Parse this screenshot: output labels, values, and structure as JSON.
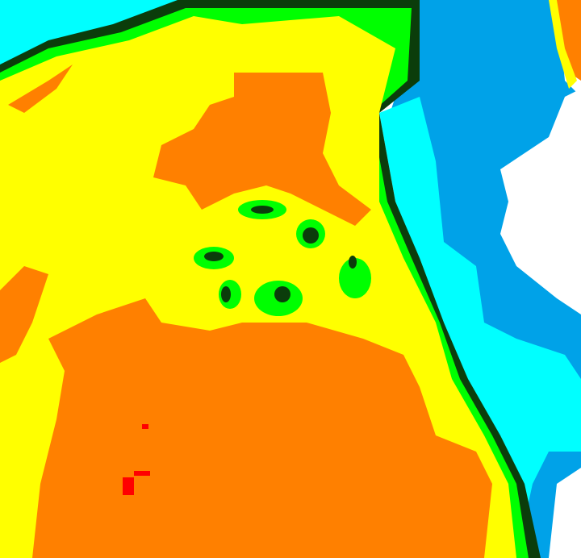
{
  "map": {
    "palette": {
      "yellow": "#ffff00",
      "orange": "#ff8000",
      "red": "#ff0000",
      "green": "#00ff00",
      "dark_green": "#0b3d0b",
      "cyan": "#00ffff",
      "blue": "#00a2e8",
      "white": "#ffffff"
    }
  }
}
